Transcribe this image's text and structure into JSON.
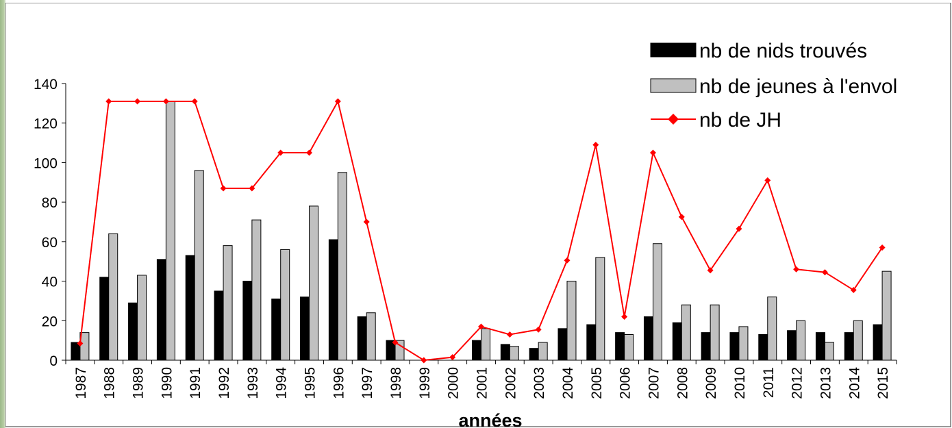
{
  "chart_data": {
    "type": "bar",
    "title": "",
    "xlabel": "années",
    "ylabel": "",
    "ylim": [
      0,
      140
    ],
    "yticks": [
      0,
      20,
      40,
      60,
      80,
      100,
      120,
      140
    ],
    "grid": false,
    "legend_position": "top-right",
    "categories": [
      "1987",
      "1988",
      "1989",
      "1990",
      "1991",
      "1992",
      "1993",
      "1994",
      "1995",
      "1996",
      "1997",
      "1998",
      "1999",
      "2000",
      "2001",
      "2002",
      "2003",
      "2004",
      "2005",
      "2006",
      "2007",
      "2008",
      "2009",
      "2010",
      "2011",
      "2012",
      "2013",
      "2014",
      "2015"
    ],
    "series": [
      {
        "name": "nb de nids trouvés",
        "type": "bar",
        "color": "#000000",
        "values": [
          9,
          42,
          29,
          51,
          53,
          35,
          40,
          31,
          32,
          61,
          22,
          10,
          0,
          0,
          10,
          8,
          6,
          16,
          18,
          14,
          22,
          19,
          14,
          14,
          13,
          15,
          14,
          14,
          18
        ]
      },
      {
        "name": "nb de jeunes à l'envol",
        "type": "bar",
        "color": "#c0c0c0",
        "values": [
          14,
          64,
          43,
          131,
          96,
          58,
          71,
          56,
          78,
          95,
          24,
          10,
          0,
          0,
          16,
          7,
          9,
          40,
          52,
          13,
          59,
          28,
          28,
          17,
          32,
          20,
          9,
          20,
          45
        ]
      },
      {
        "name": "nb de JH",
        "type": "line",
        "color": "#ff0000",
        "values": [
          8.5,
          131,
          131,
          131,
          131,
          87,
          87,
          105,
          105,
          131,
          70,
          9,
          0,
          1.5,
          17,
          13,
          15.5,
          50.5,
          109,
          22,
          105,
          72.5,
          45.5,
          66.5,
          91,
          46,
          44.5,
          35.5,
          57
        ]
      }
    ]
  }
}
